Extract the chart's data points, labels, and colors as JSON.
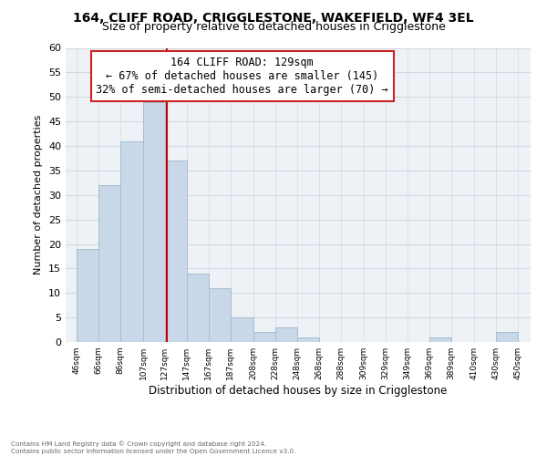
{
  "title1": "164, CLIFF ROAD, CRIGGLESTONE, WAKEFIELD, WF4 3EL",
  "title2": "Size of property relative to detached houses in Crigglestone",
  "xlabel": "Distribution of detached houses by size in Crigglestone",
  "ylabel": "Number of detached properties",
  "bar_left_edges": [
    46,
    66,
    86,
    107,
    127,
    147,
    167,
    187,
    208,
    228,
    248,
    268,
    288,
    309,
    329,
    349,
    369,
    389,
    410,
    430
  ],
  "bar_widths": [
    20,
    20,
    21,
    20,
    20,
    20,
    20,
    21,
    20,
    20,
    20,
    20,
    21,
    20,
    20,
    20,
    20,
    21,
    20,
    20
  ],
  "bar_heights": [
    19,
    32,
    41,
    49,
    37,
    14,
    11,
    5,
    2,
    3,
    1,
    0,
    0,
    0,
    0,
    0,
    1,
    0,
    0,
    2
  ],
  "bar_color": "#c8d8e8",
  "bar_edge_color": "#a8bece",
  "x_tick_labels": [
    "46sqm",
    "66sqm",
    "86sqm",
    "107sqm",
    "127sqm",
    "147sqm",
    "167sqm",
    "187sqm",
    "208sqm",
    "228sqm",
    "248sqm",
    "268sqm",
    "288sqm",
    "309sqm",
    "329sqm",
    "349sqm",
    "369sqm",
    "389sqm",
    "410sqm",
    "430sqm",
    "450sqm"
  ],
  "x_tick_positions": [
    46,
    66,
    86,
    107,
    127,
    147,
    167,
    187,
    208,
    228,
    248,
    268,
    288,
    309,
    329,
    349,
    369,
    389,
    410,
    430,
    450
  ],
  "ylim": [
    0,
    60
  ],
  "xlim": [
    36,
    462
  ],
  "property_line_x": 129,
  "property_line_color": "#cc0000",
  "annotation_title": "164 CLIFF ROAD: 129sqm",
  "annotation_line1": "← 67% of detached houses are smaller (145)",
  "annotation_line2": "32% of semi-detached houses are larger (70) →",
  "grid_color": "#d0dae2",
  "background_color": "#eef2f6",
  "footer1": "Contains HM Land Registry data © Crown copyright and database right 2024.",
  "footer2": "Contains public sector information licensed under the Open Government Licence v3.0."
}
